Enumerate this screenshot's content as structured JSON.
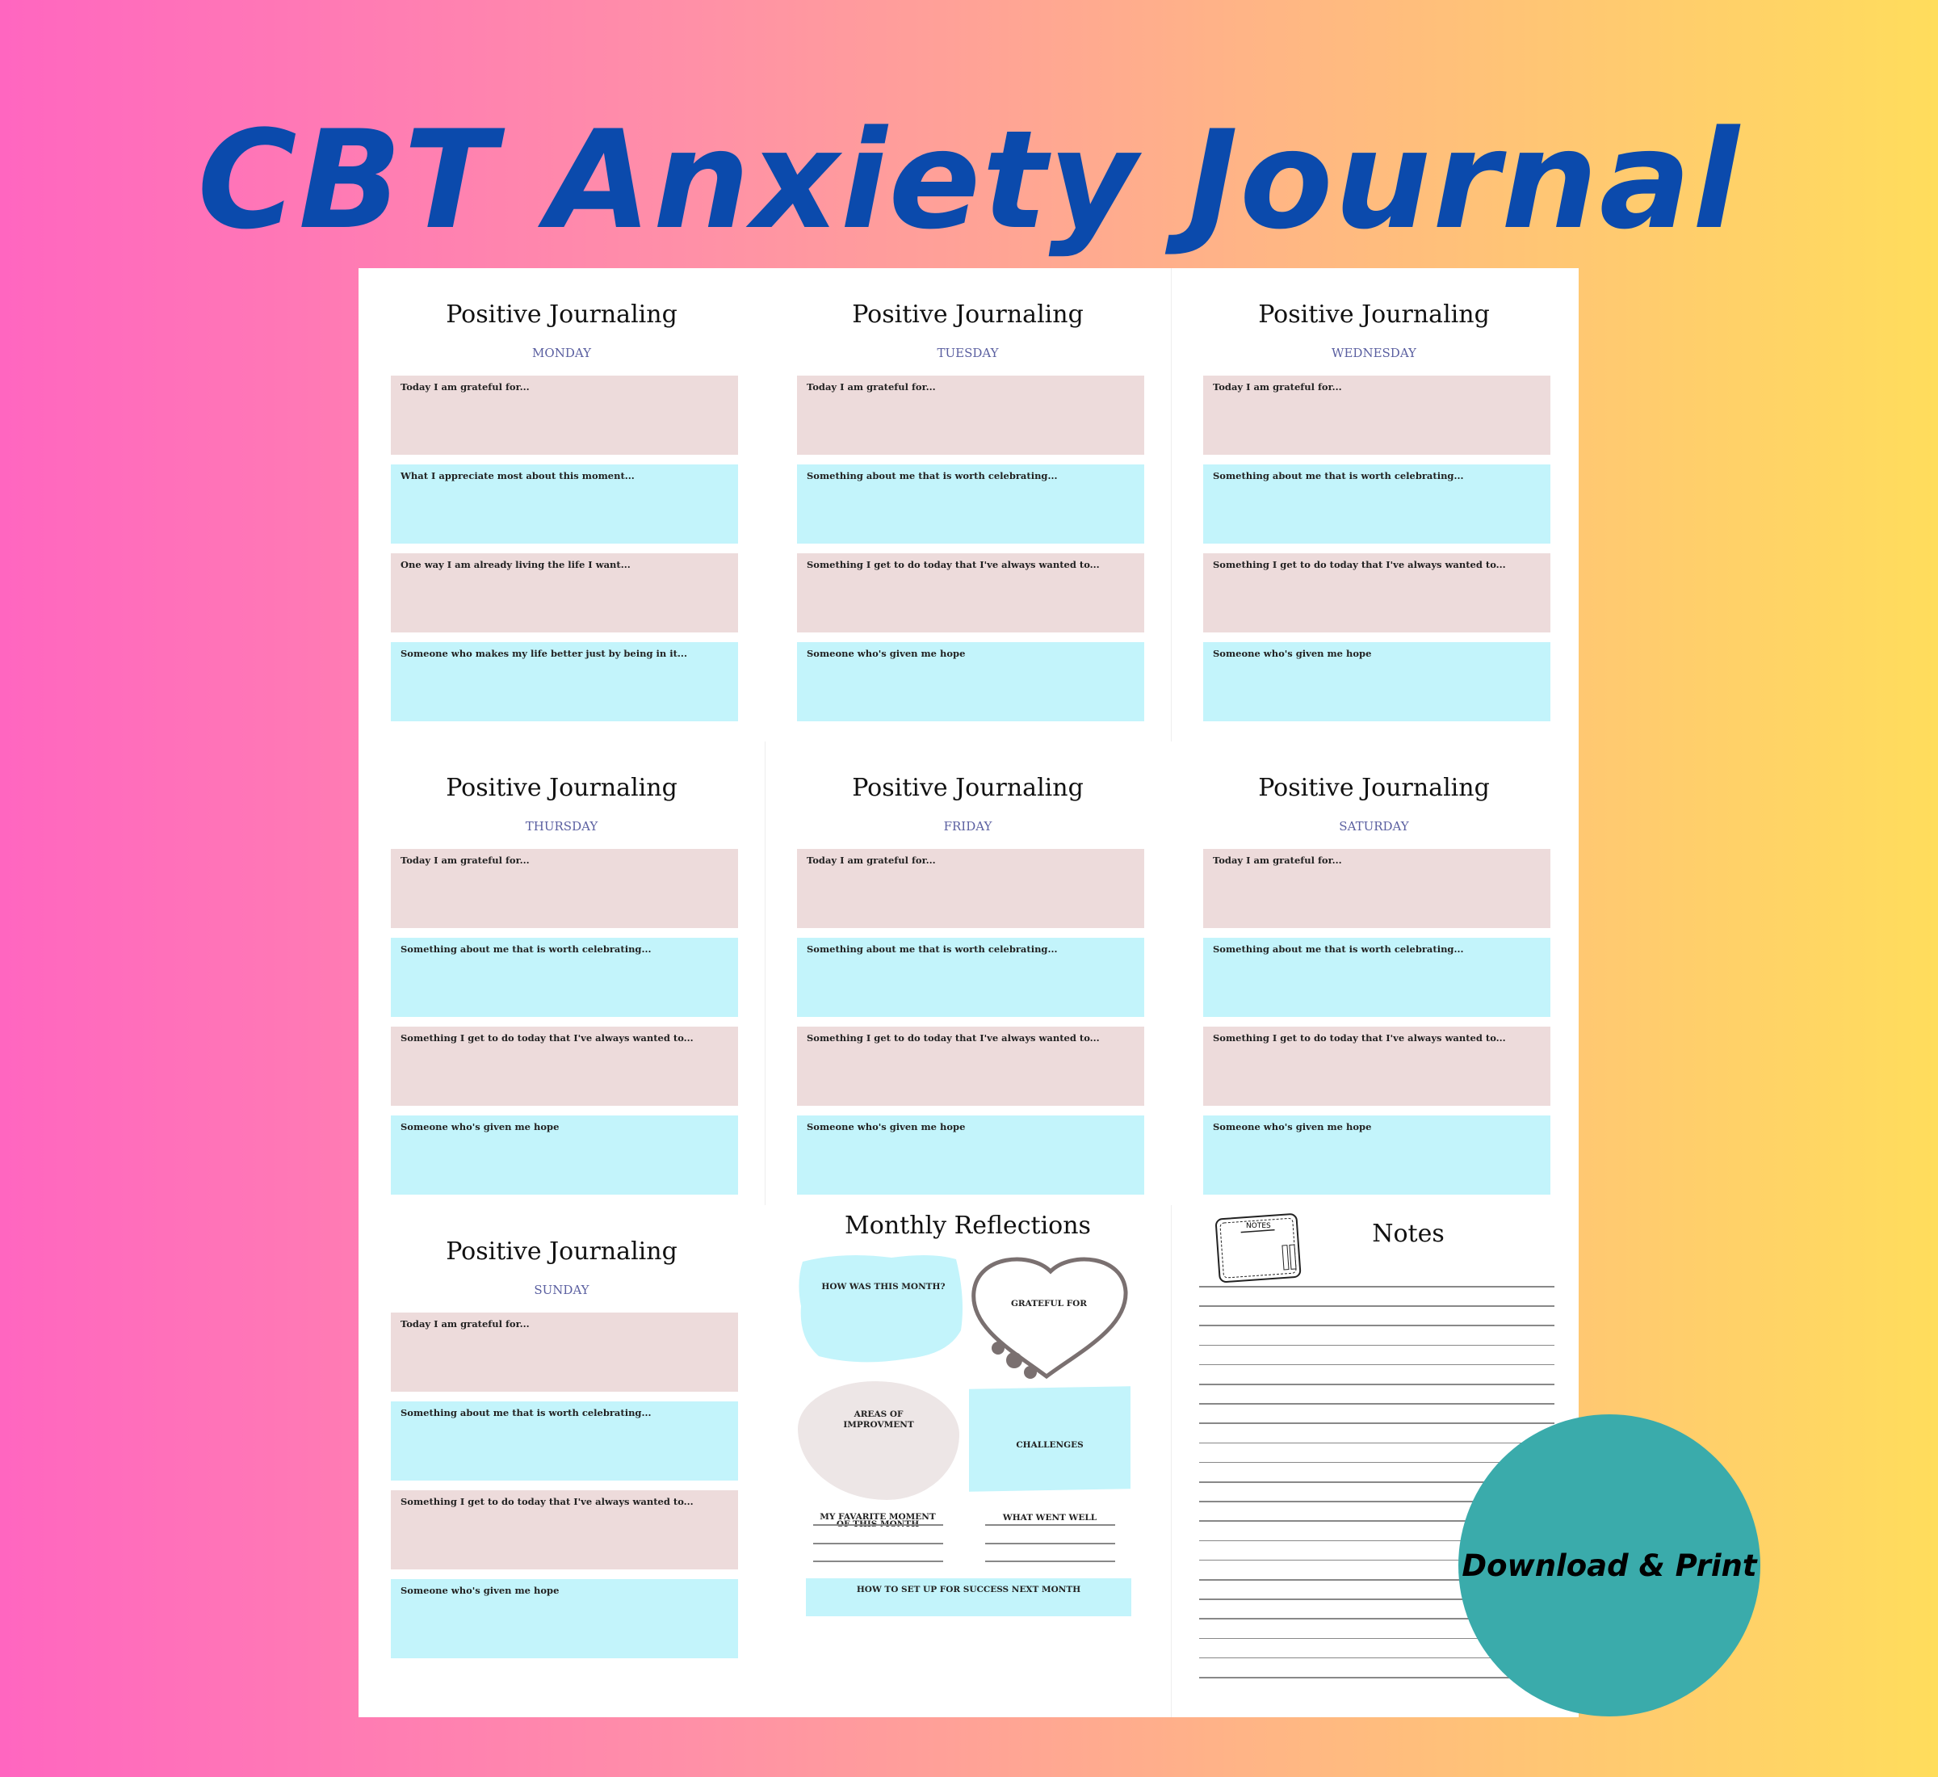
{
  "title": "CBT Anxiety Journal",
  "section_title": "Positive Journaling",
  "days": [
    {
      "day": "MONDAY",
      "prompts": [
        "Today I am grateful for...",
        "What I appreciate most about this moment...",
        "One way I am already living the life I want...",
        "Someone who makes my life better just by being in it..."
      ]
    },
    {
      "day": "TUESDAY",
      "prompts": [
        "Today I am grateful for...",
        "Something about me that is worth celebrating...",
        "Something I get to do today that I've always wanted to...",
        "Someone who's given me hope"
      ]
    },
    {
      "day": "WEDNESDAY",
      "prompts": [
        "Today I am grateful for...",
        "Something about me that is worth celebrating...",
        "Something I get to do today that I've always wanted to...",
        "Someone who's given me hope"
      ]
    },
    {
      "day": "THURSDAY",
      "prompts": [
        "Today I am grateful for...",
        "Something about me that is worth celebrating...",
        "Something I get to do today that I've always wanted to...",
        "Someone who's given me hope"
      ]
    },
    {
      "day": "FRIDAY",
      "prompts": [
        "Today I am grateful for...",
        "Something about me that is worth celebrating...",
        "Something I get to do today that I've always wanted to...",
        "Someone who's given me hope"
      ]
    },
    {
      "day": "SATURDAY",
      "prompts": [
        "Today I am grateful for...",
        "Something about me that is worth celebrating...",
        "Something I get to do today that I've always wanted to...",
        "Someone who's given me hope"
      ]
    },
    {
      "day": "SUNDAY",
      "prompts": [
        "Today I am grateful for...",
        "Something about me that is worth celebrating...",
        "Something I get to do today that I've always wanted to...",
        "Someone who's given me hope"
      ]
    }
  ],
  "monthly": {
    "title": "Monthly Reflections",
    "how_was": "HOW WAS THIS MONTH?",
    "grateful": "GRATEFUL FOR",
    "areas_1": "AREAS OF",
    "areas_2": "IMPROVMENT",
    "challenges": "CHALLENGES",
    "favorite_1": "MY FAVARITE MOMENT",
    "favorite_2": "OF THIS MONTH",
    "went_well": "WHAT WENT WELL",
    "success": "HOW TO SET UP FOR SUCCESS NEXT MONTH"
  },
  "notes": {
    "title": "Notes",
    "icon_label": "NOTES"
  },
  "cta": "Download & Print",
  "colors": {
    "title": "#0b4aac",
    "pink_box": "#eddbdb",
    "blue_box": "#c3f4fb",
    "day_label": "#5a5fa0",
    "cta": "#3aabab"
  }
}
